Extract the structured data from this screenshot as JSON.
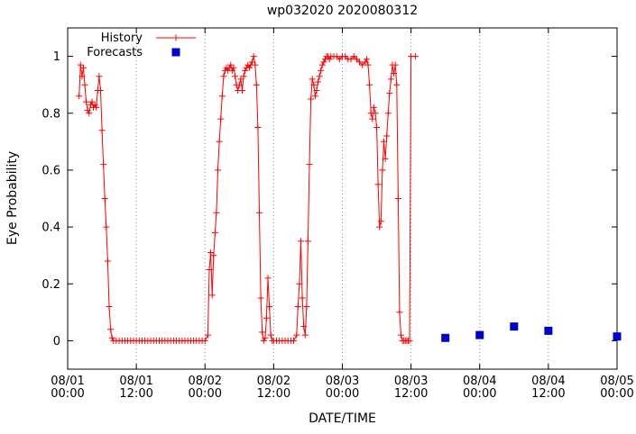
{
  "chart_data": {
    "type": "line",
    "title": "wp032020 2020080312",
    "xlabel": "DATE/TIME",
    "ylabel": "Eye Probability",
    "x_unit": "hours since 08/01 00:00",
    "xlim": [
      0,
      96
    ],
    "ylim": [
      -0.1,
      1.1
    ],
    "grid": "vertical dotted lines at x ticks",
    "grid_color": "#8c8c8c",
    "axis_color": "#000000",
    "background_color": "#ffffff",
    "legend_position": "top-left inside plot",
    "y_ticks": [
      0,
      0.2,
      0.4,
      0.6,
      0.8,
      1
    ],
    "x_ticks": [
      {
        "t": 0,
        "label": [
          "08/01",
          "00:00"
        ]
      },
      {
        "t": 12,
        "label": [
          "08/01",
          "12:00"
        ]
      },
      {
        "t": 24,
        "label": [
          "08/02",
          "00:00"
        ]
      },
      {
        "t": 36,
        "label": [
          "08/02",
          "12:00"
        ]
      },
      {
        "t": 48,
        "label": [
          "08/03",
          "00:00"
        ]
      },
      {
        "t": 60,
        "label": [
          "08/03",
          "12:00"
        ]
      },
      {
        "t": 72,
        "label": [
          "08/04",
          "00:00"
        ]
      },
      {
        "t": 84,
        "label": [
          "08/04",
          "12:00"
        ]
      },
      {
        "t": 96,
        "label": [
          "08/05",
          "00:00"
        ]
      }
    ],
    "series": [
      {
        "name": "History",
        "color": "#ff0000",
        "style": "linespoints-plus",
        "points": [
          [
            2,
            0.86
          ],
          [
            2.25,
            0.97
          ],
          [
            2.5,
            0.93
          ],
          [
            2.75,
            0.96
          ],
          [
            3,
            0.9
          ],
          [
            3.25,
            0.84
          ],
          [
            3.5,
            0.81
          ],
          [
            3.75,
            0.8
          ],
          [
            4,
            0.83
          ],
          [
            4.25,
            0.84
          ],
          [
            4.5,
            0.82
          ],
          [
            4.75,
            0.83
          ],
          [
            5,
            0.82
          ],
          [
            5.25,
            0.88
          ],
          [
            5.5,
            0.93
          ],
          [
            5.75,
            0.88
          ],
          [
            6,
            0.74
          ],
          [
            6.25,
            0.62
          ],
          [
            6.5,
            0.5
          ],
          [
            6.75,
            0.4
          ],
          [
            7,
            0.28
          ],
          [
            7.25,
            0.12
          ],
          [
            7.5,
            0.04
          ],
          [
            7.75,
            0.01
          ],
          [
            8,
            0
          ],
          [
            8.5,
            0
          ],
          [
            9,
            0
          ],
          [
            9.5,
            0
          ],
          [
            10,
            0
          ],
          [
            10.5,
            0
          ],
          [
            11,
            0
          ],
          [
            11.5,
            0
          ],
          [
            12,
            0
          ],
          [
            12.5,
            0
          ],
          [
            13,
            0
          ],
          [
            13.5,
            0
          ],
          [
            14,
            0
          ],
          [
            14.5,
            0
          ],
          [
            15,
            0
          ],
          [
            15.5,
            0
          ],
          [
            16,
            0
          ],
          [
            16.5,
            0
          ],
          [
            17,
            0
          ],
          [
            17.5,
            0
          ],
          [
            18,
            0
          ],
          [
            18.5,
            0
          ],
          [
            19,
            0
          ],
          [
            19.5,
            0
          ],
          [
            20,
            0
          ],
          [
            20.5,
            0
          ],
          [
            21,
            0
          ],
          [
            21.5,
            0
          ],
          [
            22,
            0
          ],
          [
            22.5,
            0
          ],
          [
            23,
            0
          ],
          [
            23.5,
            0
          ],
          [
            24,
            0
          ],
          [
            24.5,
            0.02
          ],
          [
            24.75,
            0.25
          ],
          [
            25,
            0.31
          ],
          [
            25.25,
            0.16
          ],
          [
            25.5,
            0.3
          ],
          [
            25.75,
            0.38
          ],
          [
            26,
            0.45
          ],
          [
            26.25,
            0.6
          ],
          [
            26.5,
            0.7
          ],
          [
            26.75,
            0.78
          ],
          [
            27,
            0.86
          ],
          [
            27.25,
            0.93
          ],
          [
            27.5,
            0.95
          ],
          [
            27.75,
            0.96
          ],
          [
            28,
            0.95
          ],
          [
            28.25,
            0.96
          ],
          [
            28.5,
            0.97
          ],
          [
            28.75,
            0.95
          ],
          [
            29,
            0.96
          ],
          [
            29.25,
            0.93
          ],
          [
            29.5,
            0.9
          ],
          [
            29.75,
            0.88
          ],
          [
            30,
            0.9
          ],
          [
            30.25,
            0.92
          ],
          [
            30.5,
            0.88
          ],
          [
            30.75,
            0.93
          ],
          [
            31,
            0.95
          ],
          [
            31.25,
            0.96
          ],
          [
            31.5,
            0.97
          ],
          [
            31.75,
            0.96
          ],
          [
            32,
            0.97
          ],
          [
            32.25,
            0.98
          ],
          [
            32.5,
            1
          ],
          [
            32.75,
            0.97
          ],
          [
            33,
            0.9
          ],
          [
            33.25,
            0.75
          ],
          [
            33.5,
            0.45
          ],
          [
            33.75,
            0.15
          ],
          [
            34,
            0.03
          ],
          [
            34.25,
            0
          ],
          [
            34.5,
            0.01
          ],
          [
            34.75,
            0.08
          ],
          [
            35,
            0.22
          ],
          [
            35.25,
            0.12
          ],
          [
            35.5,
            0.02
          ],
          [
            35.75,
            0
          ],
          [
            36,
            0
          ],
          [
            36.5,
            0
          ],
          [
            37,
            0
          ],
          [
            37.5,
            0
          ],
          [
            38,
            0
          ],
          [
            38.5,
            0
          ],
          [
            39,
            0
          ],
          [
            39.5,
            0
          ],
          [
            40,
            0.02
          ],
          [
            40.25,
            0.12
          ],
          [
            40.5,
            0.2
          ],
          [
            40.75,
            0.35
          ],
          [
            41,
            0.15
          ],
          [
            41.25,
            0.05
          ],
          [
            41.5,
            0.02
          ],
          [
            41.75,
            0.12
          ],
          [
            42,
            0.35
          ],
          [
            42.25,
            0.62
          ],
          [
            42.5,
            0.85
          ],
          [
            42.75,
            0.92
          ],
          [
            43,
            0.9
          ],
          [
            43.25,
            0.86
          ],
          [
            43.5,
            0.88
          ],
          [
            43.75,
            0.91
          ],
          [
            44,
            0.93
          ],
          [
            44.25,
            0.95
          ],
          [
            44.5,
            0.97
          ],
          [
            44.75,
            0.98
          ],
          [
            45,
            0.99
          ],
          [
            45.25,
            1
          ],
          [
            45.5,
            1
          ],
          [
            45.75,
            0.99
          ],
          [
            46,
            1
          ],
          [
            46.5,
            1
          ],
          [
            47,
            1
          ],
          [
            47.5,
            0.99
          ],
          [
            48,
            1
          ],
          [
            48.5,
            1
          ],
          [
            49,
            0.99
          ],
          [
            49.5,
            0.99
          ],
          [
            50,
            1
          ],
          [
            50.5,
            0.99
          ],
          [
            51,
            0.98
          ],
          [
            51.5,
            0.97
          ],
          [
            52,
            0.98
          ],
          [
            52.25,
            0.99
          ],
          [
            52.5,
            0.97
          ],
          [
            52.75,
            0.9
          ],
          [
            53,
            0.8
          ],
          [
            53.25,
            0.78
          ],
          [
            53.5,
            0.82
          ],
          [
            53.75,
            0.8
          ],
          [
            54,
            0.75
          ],
          [
            54.25,
            0.55
          ],
          [
            54.5,
            0.4
          ],
          [
            54.75,
            0.42
          ],
          [
            55,
            0.6
          ],
          [
            55.25,
            0.7
          ],
          [
            55.5,
            0.64
          ],
          [
            55.75,
            0.72
          ],
          [
            56,
            0.8
          ],
          [
            56.25,
            0.87
          ],
          [
            56.5,
            0.92
          ],
          [
            56.75,
            0.97
          ],
          [
            57,
            0.94
          ],
          [
            57.25,
            0.97
          ],
          [
            57.5,
            0.9
          ],
          [
            57.75,
            0.5
          ],
          [
            58,
            0.1
          ],
          [
            58.25,
            0.02
          ],
          [
            58.5,
            0
          ],
          [
            58.75,
            0
          ],
          [
            59,
            0
          ],
          [
            59.25,
            0
          ],
          [
            59.5,
            0
          ],
          [
            59.75,
            0
          ],
          [
            60,
            1
          ],
          [
            60.75,
            1
          ]
        ]
      },
      {
        "name": "Forecasts",
        "color": "#0000cd",
        "style": "filled-squares",
        "points": [
          [
            66,
            0.01
          ],
          [
            72,
            0.02
          ],
          [
            78,
            0.05
          ],
          [
            84,
            0.035
          ],
          [
            96,
            0.015
          ]
        ]
      }
    ]
  }
}
